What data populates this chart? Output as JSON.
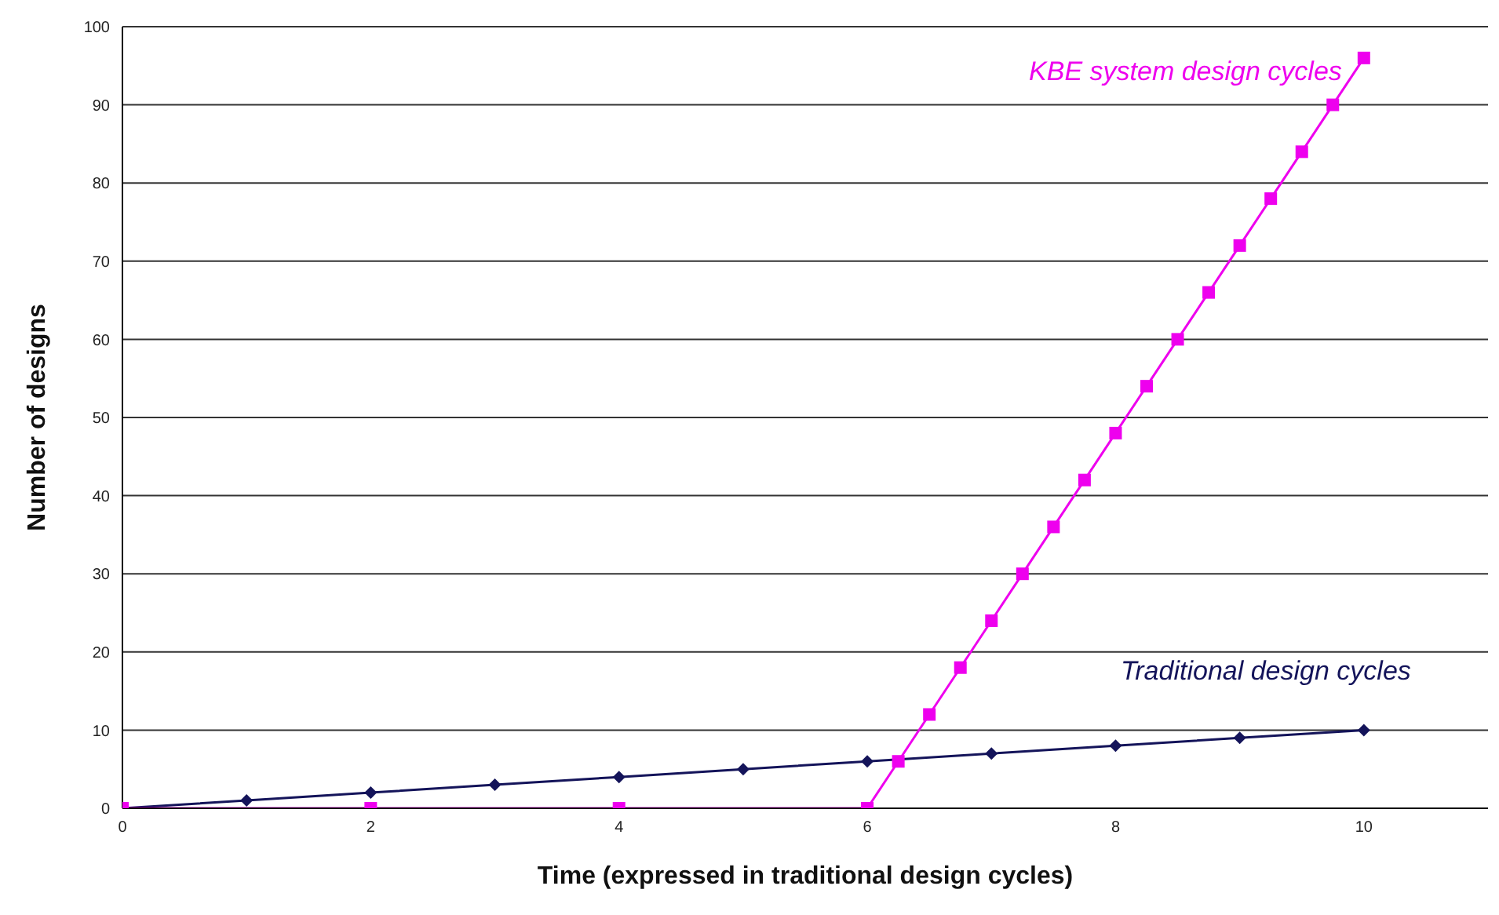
{
  "chart_data": {
    "type": "line",
    "xlabel": "Time (expressed in traditional design cycles)",
    "ylabel": "Number of designs",
    "xlim": [
      0,
      11
    ],
    "xticks": [
      0,
      2,
      4,
      6,
      8,
      10
    ],
    "ylim": [
      0,
      100
    ],
    "yticks": [
      0,
      10,
      20,
      30,
      40,
      50,
      60,
      70,
      80,
      90,
      100
    ],
    "grid": "y",
    "series": [
      {
        "name": "Traditional design cycles",
        "color": "#14145a",
        "marker": "diamond",
        "x": [
          0,
          1,
          2,
          3,
          4,
          5,
          6,
          7,
          8,
          9,
          10
        ],
        "values": [
          0,
          1,
          2,
          3,
          4,
          5,
          6,
          7,
          8,
          9,
          10
        ]
      },
      {
        "name": "KBE system design cycles",
        "color": "#ee00ee",
        "marker": "square",
        "x": [
          0,
          2,
          4,
          6,
          6.25,
          6.5,
          6.75,
          7,
          7.25,
          7.5,
          7.75,
          8,
          8.25,
          8.5,
          8.75,
          9,
          9.25,
          9.5,
          9.75,
          10
        ],
        "values": [
          0,
          0,
          0,
          0,
          6,
          12,
          18,
          24,
          30,
          36,
          42,
          48,
          54,
          60,
          66,
          72,
          78,
          84,
          90,
          96
        ]
      }
    ]
  }
}
